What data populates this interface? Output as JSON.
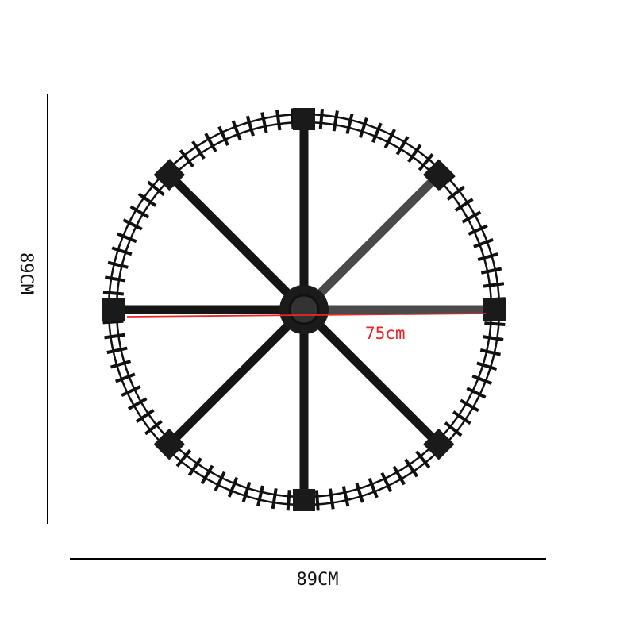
{
  "dimensions": {
    "height_label": "89CM",
    "width_label": "89CM",
    "radius_label": "75cm"
  },
  "colors": {
    "track": "#111111",
    "measure_line": "#e8262a",
    "background": "#ffffff"
  },
  "product": {
    "spoke_count": 8
  }
}
